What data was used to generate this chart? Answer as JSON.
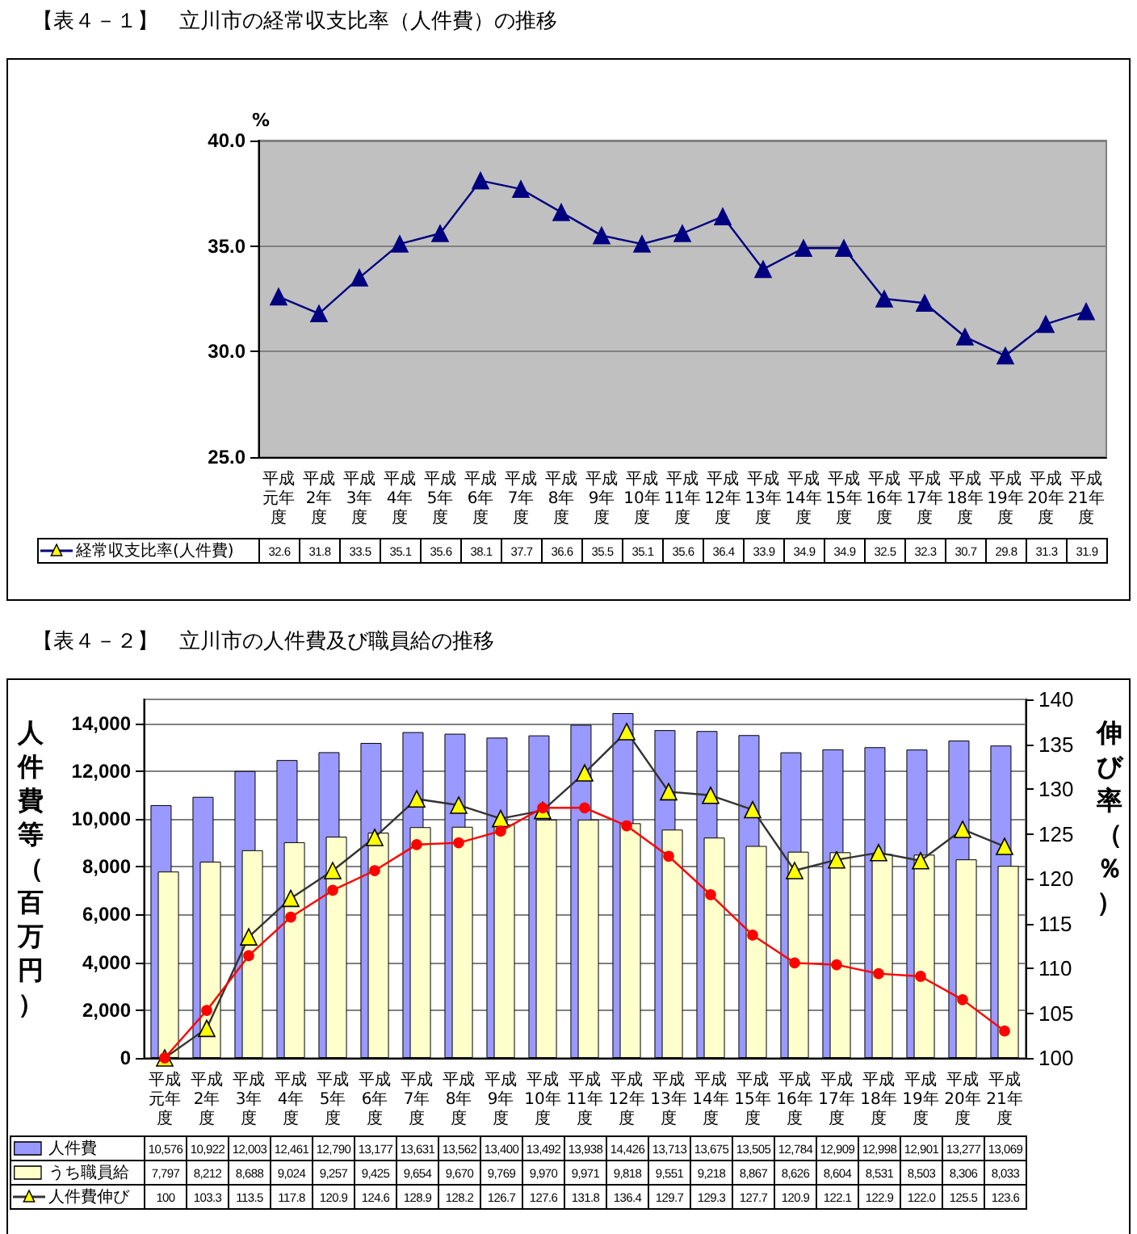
{
  "chart_data": [
    {
      "type": "line",
      "title": "【表４－１】　立川市の経常収支比率（人件費）の推移",
      "ylabel": "%",
      "categories": [
        "平成元年度",
        "平成2年度",
        "平成3年度",
        "平成4年度",
        "平成5年度",
        "平成6年度",
        "平成7年度",
        "平成8年度",
        "平成9年度",
        "平成10年度",
        "平成11年度",
        "平成12年度",
        "平成13年度",
        "平成14年度",
        "平成15年度",
        "平成16年度",
        "平成17年度",
        "平成18年度",
        "平成19年度",
        "平成20年度",
        "平成21年度"
      ],
      "series": [
        {
          "name": "経常収支比率(人件費)",
          "color": "#000080",
          "values": [
            32.6,
            31.8,
            33.5,
            35.1,
            35.6,
            38.1,
            37.7,
            36.6,
            35.5,
            35.1,
            35.6,
            36.4,
            33.9,
            34.9,
            34.9,
            32.5,
            32.3,
            30.7,
            29.8,
            31.3,
            31.9
          ]
        }
      ],
      "ylim": [
        25,
        40
      ],
      "yticks": [
        {
          "value": 25,
          "label": "25.0"
        },
        {
          "value": 30,
          "label": "30.0"
        },
        {
          "value": 35,
          "label": "35.0"
        },
        {
          "value": 40,
          "label": "40.0"
        }
      ],
      "grid": "y",
      "legend": "bottom",
      "marker": "triangle",
      "data_labels": true
    },
    {
      "type": "bar",
      "title": "【表４－２】　立川市の人件費及び職員給の推移",
      "ylabel": "人件費等（百万円）",
      "y2label": "伸び率（％）",
      "categories": [
        "平成元年度",
        "平成2年度",
        "平成3年度",
        "平成4年度",
        "平成5年度",
        "平成6年度",
        "平成7年度",
        "平成8年度",
        "平成9年度",
        "平成10年度",
        "平成11年度",
        "平成12年度",
        "平成13年度",
        "平成14年度",
        "平成15年度",
        "平成16年度",
        "平成17年度",
        "平成18年度",
        "平成19年度",
        "平成20年度",
        "平成21年度"
      ],
      "series": [
        {
          "name": "人件費",
          "color": "#9999ff",
          "values": [
            10576,
            10922,
            12003,
            12461,
            12790,
            13177,
            13631,
            13562,
            13400,
            13492,
            13938,
            14426,
            13713,
            13675,
            13505,
            12784,
            12909,
            12998,
            12901,
            13277,
            13069
          ],
          "value_labels": [
            "10,576",
            "10,922",
            "12,003",
            "12,461",
            "12,790",
            "13,177",
            "13,631",
            "13,562",
            "13,400",
            "13,492",
            "13,938",
            "14,426",
            "13,713",
            "13,675",
            "13,505",
            "12,784",
            "12,909",
            "12,998",
            "12,901",
            "13,277",
            "13,069"
          ]
        },
        {
          "name": "うち職員給",
          "color": "#ffffcc",
          "values": [
            7797,
            8212,
            8688,
            9024,
            9257,
            9425,
            9654,
            9670,
            9769,
            9970,
            9971,
            9818,
            9551,
            9218,
            8867,
            8626,
            8604,
            8531,
            8503,
            8306,
            8033
          ],
          "value_labels": [
            "7,797",
            "8,212",
            "8,688",
            "9,024",
            "9,257",
            "9,425",
            "9,654",
            "9,670",
            "9,769",
            "9,970",
            "9,971",
            "9,818",
            "9,551",
            "9,218",
            "8,867",
            "8,626",
            "8,604",
            "8,531",
            "8,503",
            "8,306",
            "8,033"
          ]
        },
        {
          "name": "人件費伸び",
          "type": "line",
          "axis": "y2",
          "marker": "triangle",
          "color": "#333333",
          "values": [
            100,
            103.3,
            113.5,
            117.8,
            120.9,
            124.6,
            128.9,
            128.2,
            126.7,
            127.6,
            131.8,
            136.4,
            129.7,
            129.3,
            127.7,
            120.9,
            122.1,
            122.9,
            122.0,
            125.5,
            123.6
          ],
          "value_labels": [
            "100",
            "103.3",
            "113.5",
            "117.8",
            "120.9",
            "124.6",
            "128.9",
            "128.2",
            "126.7",
            "127.6",
            "131.8",
            "136.4",
            "129.7",
            "129.3",
            "127.7",
            "120.9",
            "122.1",
            "122.9",
            "122.0",
            "125.5",
            "123.6"
          ]
        },
        {
          "type": "line",
          "axis": "y2",
          "marker": "circle",
          "color": "#ff0000",
          "values": [
            100,
            105.3,
            111.4,
            115.7,
            118.7,
            120.9,
            123.8,
            124.0,
            125.3,
            127.9,
            127.9,
            125.9,
            122.5,
            118.2,
            113.7,
            110.6,
            110.4,
            109.4,
            109.1,
            106.5,
            103.0
          ]
        }
      ],
      "ylim": [
        0,
        15000
      ],
      "yticks": [
        0,
        {
          "value": 2000,
          "label": "2,000"
        },
        {
          "value": 4000,
          "label": "4,000"
        },
        {
          "value": 6000,
          "label": "6,000"
        },
        {
          "value": 8000,
          "label": "8,000"
        },
        {
          "value": 10000,
          "label": "10,000"
        },
        {
          "value": 12000,
          "label": "12,000"
        },
        {
          "value": 14000,
          "label": "14,000"
        }
      ],
      "y2lim": [
        100,
        140
      ],
      "y2ticks": [
        100,
        105,
        110,
        115,
        120,
        125,
        130,
        135,
        140
      ],
      "grid": "y",
      "legend": "bottom"
    }
  ]
}
